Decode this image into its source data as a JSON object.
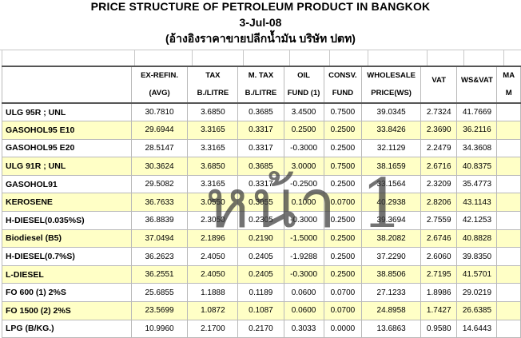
{
  "header": {
    "title": "PRICE STRUCTURE OF PETROLEUM PRODUCT IN BANGKOK",
    "date": "3-Jul-08",
    "subtitle": "(อ้างอิงราคาขายปลีกน้ำมัน บริษัท ปตท)"
  },
  "columns": [
    {
      "line1": "",
      "line2": ""
    },
    {
      "line1": "EX-REFIN.",
      "line2": "(AVG)"
    },
    {
      "line1": "TAX",
      "line2": "B./LITRE"
    },
    {
      "line1": "M. TAX",
      "line2": "B./LITRE"
    },
    {
      "line1": "OIL",
      "line2": "FUND (1)"
    },
    {
      "line1": "CONSV.",
      "line2": "FUND"
    },
    {
      "line1": "WHOLESALE",
      "line2": "PRICE(WS)"
    },
    {
      "line1": "VAT",
      "line2": ""
    },
    {
      "line1": "WS&VAT",
      "line2": ""
    },
    {
      "line1": "MA",
      "line2": "M"
    }
  ],
  "rows": [
    {
      "product": "ULG 95R ; UNL",
      "values": [
        "30.7810",
        "3.6850",
        "0.3685",
        "3.4500",
        "0.7500",
        "39.0345",
        "2.7324",
        "41.7669"
      ],
      "highlight": false
    },
    {
      "product": "GASOHOL95 E10",
      "values": [
        "29.6944",
        "3.3165",
        "0.3317",
        "0.2500",
        "0.2500",
        "33.8426",
        "2.3690",
        "36.2116"
      ],
      "highlight": true
    },
    {
      "product": "GASOHOL95 E20",
      "values": [
        "28.5147",
        "3.3165",
        "0.3317",
        "-0.3000",
        "0.2500",
        "32.1129",
        "2.2479",
        "34.3608"
      ],
      "highlight": false
    },
    {
      "product": "ULG 91R ; UNL",
      "values": [
        "30.3624",
        "3.6850",
        "0.3685",
        "3.0000",
        "0.7500",
        "38.1659",
        "2.6716",
        "40.8375"
      ],
      "highlight": true
    },
    {
      "product": "GASOHOL91",
      "values": [
        "29.5082",
        "3.3165",
        "0.3317",
        "-0.2500",
        "0.2500",
        "33.1564",
        "2.3209",
        "35.4773"
      ],
      "highlight": false
    },
    {
      "product": "KEROSENE",
      "values": [
        "36.7633",
        "3.0550",
        "0.3055",
        "0.1000",
        "0.0700",
        "40.2938",
        "2.8206",
        "43.1143"
      ],
      "highlight": true
    },
    {
      "product": "H-DIESEL(0.035%S)",
      "values": [
        "36.8839",
        "2.3050",
        "0.2305",
        "-0.3000",
        "0.2500",
        "39.3694",
        "2.7559",
        "42.1253"
      ],
      "highlight": false
    },
    {
      "product": "Biodiesel (B5)",
      "values": [
        "37.0494",
        "2.1896",
        "0.2190",
        "-1.5000",
        "0.2500",
        "38.2082",
        "2.6746",
        "40.8828"
      ],
      "highlight": true
    },
    {
      "product": "H-DIESEL(0.7%S)",
      "values": [
        "36.2623",
        "2.4050",
        "0.2405",
        "-1.9288",
        "0.2500",
        "37.2290",
        "2.6060",
        "39.8350"
      ],
      "highlight": false
    },
    {
      "product": "L-DIESEL",
      "values": [
        "36.2551",
        "2.4050",
        "0.2405",
        "-0.3000",
        "0.2500",
        "38.8506",
        "2.7195",
        "41.5701"
      ],
      "highlight": true
    },
    {
      "product": "FO 600 (1) 2%S",
      "values": [
        "25.6855",
        "1.1888",
        "0.1189",
        "0.0600",
        "0.0700",
        "27.1233",
        "1.8986",
        "29.0219"
      ],
      "highlight": false
    },
    {
      "product": "FO 1500 (2) 2%S",
      "values": [
        "23.5699",
        "1.0872",
        "0.1087",
        "0.0600",
        "0.0700",
        "24.8958",
        "1.7427",
        "26.6385"
      ],
      "highlight": true
    },
    {
      "product": "LPG (B/KG.)",
      "values": [
        "10.9960",
        "2.1700",
        "0.2170",
        "0.3033",
        "0.0000",
        "13.6863",
        "0.9580",
        "14.6443"
      ],
      "highlight": false
    }
  ],
  "watermark": "หน้า 1"
}
